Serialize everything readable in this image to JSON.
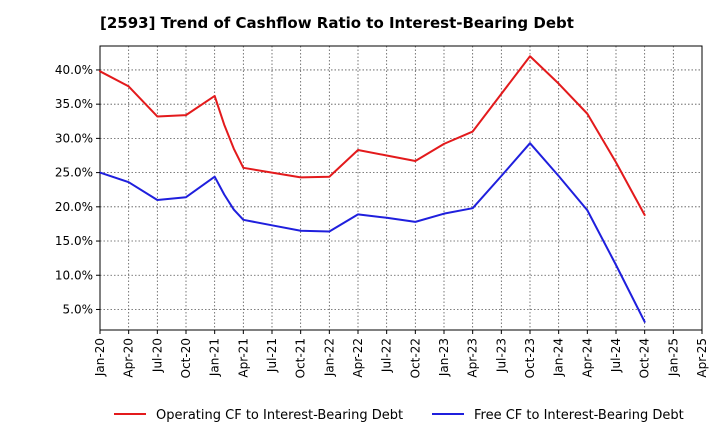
{
  "chart_data": {
    "type": "line",
    "title": "[2593]  Trend of Cashflow Ratio to Interest-Bearing Debt",
    "xlabel": "",
    "ylabel": "",
    "x_tick_labels": [
      "Jan-20",
      "Apr-20",
      "Jul-20",
      "Oct-20",
      "Jan-21",
      "Apr-21",
      "Jul-21",
      "Oct-21",
      "Jan-22",
      "Apr-22",
      "Jul-22",
      "Oct-22",
      "Jan-23",
      "Apr-23",
      "Jul-23",
      "Oct-23",
      "Jan-24",
      "Apr-24",
      "Jul-24",
      "Oct-24",
      "Jan-25",
      "Apr-25"
    ],
    "y_tick_labels": [
      "5.0%",
      "10.0%",
      "15.0%",
      "20.0%",
      "25.0%",
      "30.0%",
      "35.0%",
      "40.0%"
    ],
    "y_ticks": [
      5,
      10,
      15,
      20,
      25,
      30,
      35,
      40
    ],
    "xlim": [
      "Jan-20",
      "Apr-25"
    ],
    "ylim": [
      2.0,
      43.5
    ],
    "y_unit": "%",
    "grid": true,
    "legend_position": "bottom",
    "series": [
      {
        "name": "Operating CF to Interest-Bearing Debt",
        "color": "#e31a1c",
        "points": [
          {
            "x": "Jan-20",
            "y": 39.8
          },
          {
            "x": "Apr-20",
            "y": 37.6
          },
          {
            "x": "Jul-20",
            "y": 33.2
          },
          {
            "x": "Oct-20",
            "y": 33.4
          },
          {
            "x": "Jan-21",
            "y": 36.2
          },
          {
            "x": "Feb-21",
            "y": 32.0
          },
          {
            "x": "Mar-21",
            "y": 28.5
          },
          {
            "x": "Apr-21",
            "y": 25.7
          },
          {
            "x": "Jul-21",
            "y": 25.0
          },
          {
            "x": "Oct-21",
            "y": 24.3
          },
          {
            "x": "Jan-22",
            "y": 24.4
          },
          {
            "x": "Apr-22",
            "y": 28.3
          },
          {
            "x": "Jul-22",
            "y": 27.5
          },
          {
            "x": "Oct-22",
            "y": 26.7
          },
          {
            "x": "Jan-23",
            "y": 29.2
          },
          {
            "x": "Apr-23",
            "y": 31.0
          },
          {
            "x": "Jul-23",
            "y": 36.5
          },
          {
            "x": "Oct-23",
            "y": 42.0
          },
          {
            "x": "Jan-24",
            "y": 38.0
          },
          {
            "x": "Apr-24",
            "y": 33.6
          },
          {
            "x": "Jul-24",
            "y": 26.5
          },
          {
            "x": "Oct-24",
            "y": 18.8
          }
        ]
      },
      {
        "name": "Free CF to Interest-Bearing Debt",
        "color": "#1f1fdd",
        "points": [
          {
            "x": "Jan-20",
            "y": 25.0
          },
          {
            "x": "Apr-20",
            "y": 23.6
          },
          {
            "x": "Jul-20",
            "y": 21.0
          },
          {
            "x": "Oct-20",
            "y": 21.4
          },
          {
            "x": "Jan-21",
            "y": 24.4
          },
          {
            "x": "Feb-21",
            "y": 21.8
          },
          {
            "x": "Mar-21",
            "y": 19.6
          },
          {
            "x": "Apr-21",
            "y": 18.1
          },
          {
            "x": "Jul-21",
            "y": 17.3
          },
          {
            "x": "Oct-21",
            "y": 16.5
          },
          {
            "x": "Jan-22",
            "y": 16.4
          },
          {
            "x": "Apr-22",
            "y": 18.9
          },
          {
            "x": "Jul-22",
            "y": 18.4
          },
          {
            "x": "Oct-22",
            "y": 17.8
          },
          {
            "x": "Jan-23",
            "y": 19.0
          },
          {
            "x": "Apr-23",
            "y": 19.8
          },
          {
            "x": "Jul-23",
            "y": 24.5
          },
          {
            "x": "Oct-23",
            "y": 29.3
          },
          {
            "x": "Jan-24",
            "y": 24.5
          },
          {
            "x": "Apr-24",
            "y": 19.5
          },
          {
            "x": "Jul-24",
            "y": 11.5
          },
          {
            "x": "Oct-24",
            "y": 3.2
          }
        ]
      }
    ]
  }
}
